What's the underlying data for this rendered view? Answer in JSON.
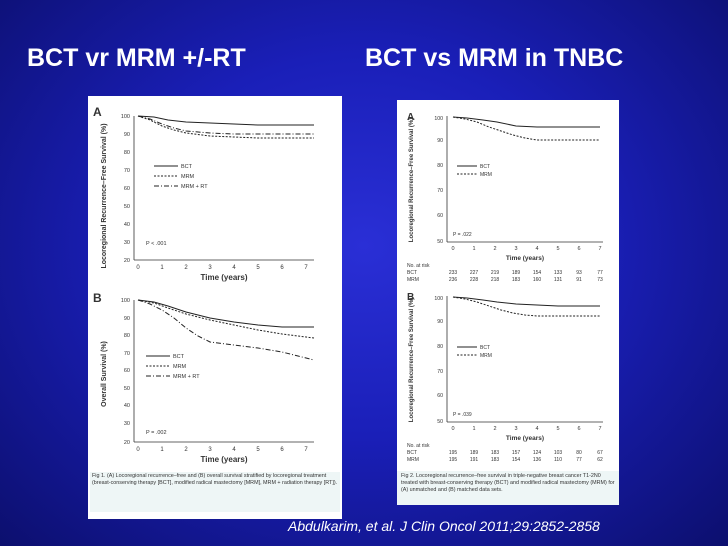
{
  "slide": {
    "title_left": "BCT vr MRM +/-RT",
    "title_right": "BCT vs MRM in TNBC",
    "citation": "Abdulkarim, et al. J Clin Oncol 2011;29:2852-2858"
  },
  "figure1": {
    "panelA": {
      "label": "A",
      "ylabel": "Locoregional Recurrence–Free Survival (%)",
      "xlabel": "Time (years)",
      "pvalue": "P < .001",
      "legend": [
        "BCT",
        "MRM",
        "MRM + RT"
      ],
      "yticks": [
        "100",
        "90",
        "80",
        "70",
        "60",
        "50",
        "40",
        "30",
        "20"
      ],
      "xticks": [
        "0",
        "1",
        "2",
        "3",
        "4",
        "5",
        "6",
        "7"
      ]
    },
    "panelB": {
      "label": "B",
      "ylabel": "Overall Survival (%)",
      "xlabel": "Time (years)",
      "pvalue": "P = .002",
      "legend": [
        "BCT",
        "MRM",
        "MRM + RT"
      ],
      "yticks": [
        "100",
        "90",
        "80",
        "70",
        "60",
        "50",
        "40",
        "30",
        "20"
      ],
      "xticks": [
        "0",
        "1",
        "2",
        "3",
        "4",
        "5",
        "6",
        "7"
      ]
    },
    "caption": "Fig 1. (A) Locoregional recurrence–free and (B) overall survival stratified by locoregional treatment (breast-conserving therapy [BCT], modified radical mastectomy [MRM], MRM + radiation therapy [RT])."
  },
  "figure2": {
    "panelA": {
      "label": "A",
      "ylabel": "Locoregional Recurrence–Free Survival (%)",
      "xlabel": "Time (years)",
      "pvalue": "P = .022",
      "legend": [
        "BCT",
        "MRM"
      ],
      "yticks": [
        "100",
        "90",
        "80",
        "70",
        "60",
        "50"
      ],
      "xticks": [
        "0",
        "1",
        "2",
        "3",
        "4",
        "5",
        "6",
        "7"
      ],
      "risk_title": "No. at risk",
      "risk": [
        {
          "group": "BCT",
          "values": [
            "233",
            "227",
            "219",
            "189",
            "154",
            "133",
            "93",
            "77"
          ]
        },
        {
          "group": "MRM",
          "values": [
            "236",
            "228",
            "218",
            "183",
            "160",
            "131",
            "91",
            "73"
          ]
        }
      ]
    },
    "panelB": {
      "label": "B",
      "ylabel": "Locoregional Recurrence–Free Survival (%)",
      "xlabel": "Time (years)",
      "pvalue": "P = .039",
      "legend": [
        "BCT",
        "MRM"
      ],
      "yticks": [
        "100",
        "90",
        "80",
        "70",
        "60",
        "50"
      ],
      "xticks": [
        "0",
        "1",
        "2",
        "3",
        "4",
        "5",
        "6",
        "7"
      ],
      "risk_title": "No. at risk",
      "risk": [
        {
          "group": "BCT",
          "values": [
            "195",
            "189",
            "183",
            "157",
            "124",
            "103",
            "80",
            "67"
          ]
        },
        {
          "group": "MRM",
          "values": [
            "195",
            "191",
            "183",
            "154",
            "136",
            "110",
            "77",
            "62"
          ]
        }
      ]
    },
    "caption": "Fig 2. Locoregional recurrence–free survival in triple-negative breast cancer T1-2N0 treated with breast-conserving therapy (BCT) and modified radical mastectomy (MRM) for (A) unmatched and (B) matched data sets."
  }
}
